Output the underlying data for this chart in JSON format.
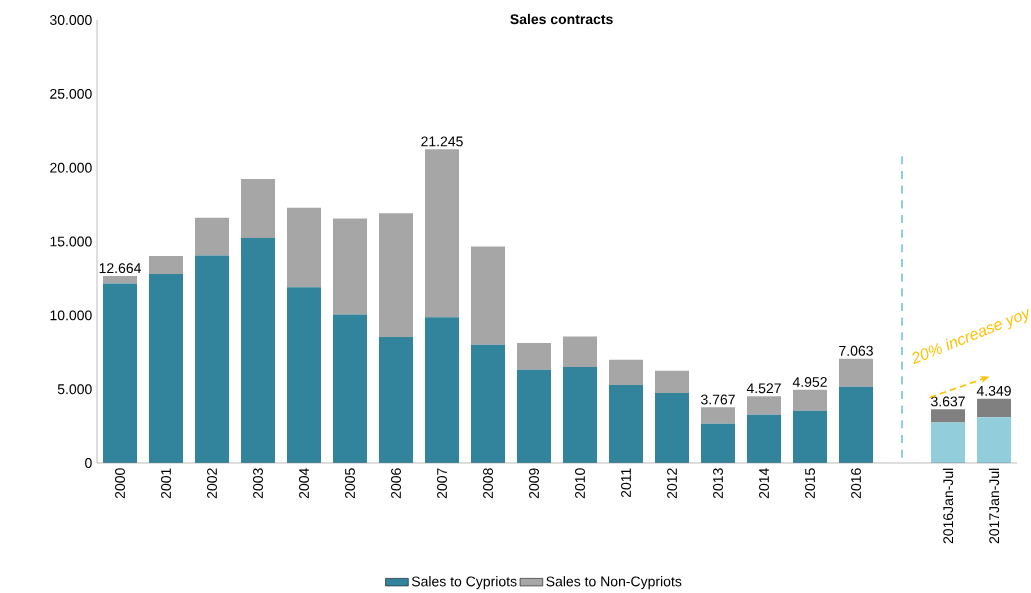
{
  "chart_data": {
    "type": "bar",
    "title": "Sales contracts",
    "stacked": true,
    "categories": [
      "2000",
      "2001",
      "2002",
      "2003",
      "2004",
      "2005",
      "2006",
      "2007",
      "2008",
      "2009",
      "2010",
      "2011",
      "2012",
      "2013",
      "2014",
      "2015",
      "2016",
      null,
      "2016Jan-Jul",
      "2017Jan-Jul"
    ],
    "series": [
      {
        "name": "Sales to Cypriots",
        "color": "#31849b",
        "colors": [
          "#31849b",
          "#31849b",
          "#31849b",
          "#31849b",
          "#31849b",
          "#31849b",
          "#31849b",
          "#31849b",
          "#31849b",
          "#31849b",
          "#31849b",
          "#31849b",
          "#31849b",
          "#31849b",
          "#31849b",
          "#31849b",
          "#31849b",
          null,
          "#92cddc",
          "#92cddc"
        ],
        "values": [
          12150,
          12800,
          14060,
          15230,
          11900,
          10050,
          8530,
          9870,
          8000,
          6320,
          6500,
          5280,
          4740,
          2650,
          3260,
          3530,
          5170,
          null,
          2750,
          3090
        ]
      },
      {
        "name": "Sales to Non-Cypriots",
        "color": "#a6a6a6",
        "colors": [
          "#a6a6a6",
          "#a6a6a6",
          "#a6a6a6",
          "#a6a6a6",
          "#a6a6a6",
          "#a6a6a6",
          "#a6a6a6",
          "#a6a6a6",
          "#a6a6a6",
          "#a6a6a6",
          "#a6a6a6",
          "#a6a6a6",
          "#a6a6a6",
          "#a6a6a6",
          "#a6a6a6",
          "#a6a6a6",
          "#a6a6a6",
          null,
          "#808080",
          "#808080"
        ],
        "values": [
          514,
          1210,
          2550,
          4000,
          5390,
          6500,
          8380,
          11375,
          6660,
          1810,
          2060,
          1710,
          1500,
          1117,
          1267,
          1422,
          1893,
          null,
          887,
          1259
        ]
      }
    ],
    "totals": [
      "12.664",
      null,
      null,
      null,
      null,
      null,
      null,
      "21.245",
      null,
      null,
      null,
      null,
      null,
      "3.767",
      "4.527",
      "4.952",
      "7.063",
      null,
      "3.637",
      "4.349"
    ],
    "ylim": [
      0,
      30000
    ],
    "yticks": [
      0,
      {
        "value": 5000,
        "label": "5.000"
      },
      {
        "value": 10000,
        "label": "10.000"
      },
      {
        "value": 15000,
        "label": "15.000"
      },
      {
        "value": 20000,
        "label": "20.000"
      },
      {
        "value": 25000,
        "label": "25.000"
      },
      {
        "value": 30000,
        "label": "30.000"
      }
    ],
    "annotations": [
      "20% increase yoy"
    ],
    "legend": "bottom",
    "grid": false
  }
}
